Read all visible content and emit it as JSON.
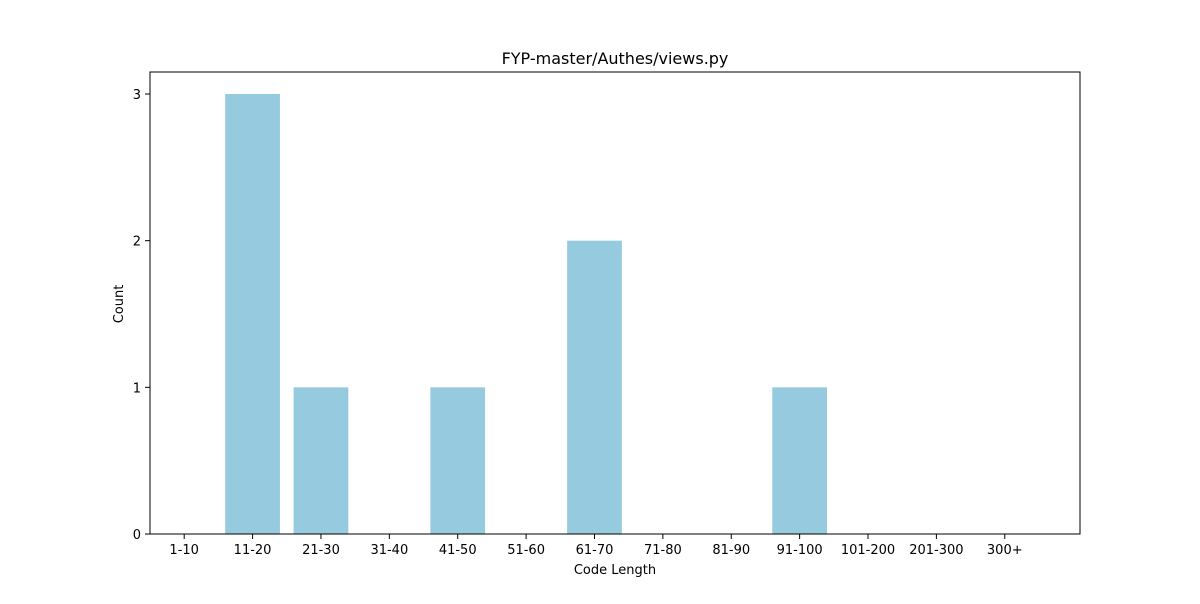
{
  "chart_data": {
    "type": "bar",
    "title": "FYP-master/Authes/views.py",
    "xlabel": "Code Length",
    "ylabel": "Count",
    "categories": [
      "1-10",
      "11-20",
      "21-30",
      "31-40",
      "41-50",
      "51-60",
      "61-70",
      "71-80",
      "81-90",
      "91-100",
      "101-200",
      "201-300",
      "300+"
    ],
    "values": [
      0,
      3,
      1,
      0,
      1,
      0,
      2,
      0,
      0,
      1,
      0,
      0,
      0
    ],
    "y_ticks": [
      0,
      1,
      2,
      3
    ],
    "ylim": [
      0,
      3.15
    ],
    "grid": false,
    "legend": "none",
    "bar_color": "#96cade",
    "axis_color": "#000000"
  }
}
